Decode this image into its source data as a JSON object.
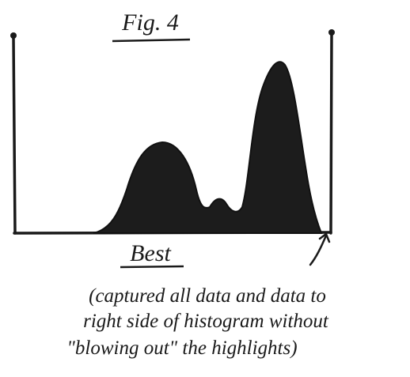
{
  "title": "Fig. 4",
  "label": "Best",
  "caption": [
    "(captured all data and data to",
    "right side of histogram without",
    "\"blowing out\" the highlights)"
  ]
}
